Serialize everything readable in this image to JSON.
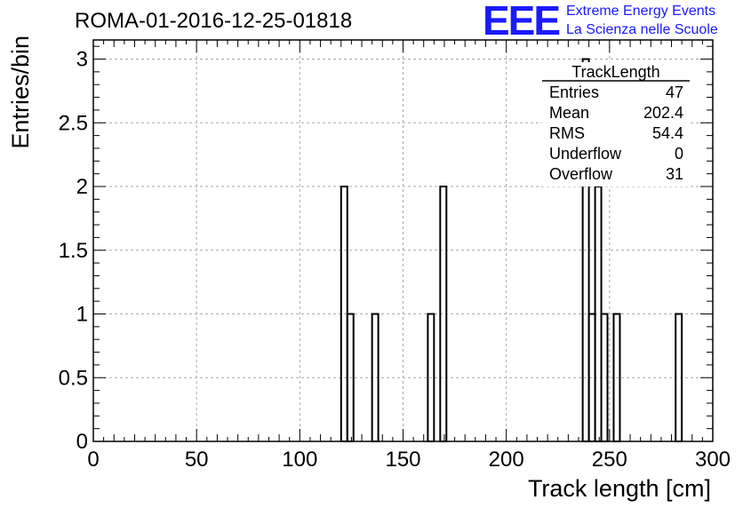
{
  "title": "ROMA-01-2016-12-25-01818",
  "logo": {
    "mark": "EEE",
    "line1": "Extreme Energy Events",
    "line2": "La Scienza nelle Scuole"
  },
  "stats": {
    "name": "TrackLength",
    "rows": [
      {
        "label": "Entries",
        "value": "47"
      },
      {
        "label": "Mean",
        "value": "202.4"
      },
      {
        "label": "RMS",
        "value": "54.4"
      },
      {
        "label": "Underflow",
        "value": "0"
      },
      {
        "label": "Overflow",
        "value": "31"
      }
    ]
  },
  "chart_data": {
    "type": "bar",
    "title": "ROMA-01-2016-12-25-01818",
    "xlabel": "Track length [cm]",
    "ylabel": "Entries/bin",
    "xlim": [
      0,
      300
    ],
    "ylim": [
      0,
      3.15
    ],
    "bin_width": 3,
    "grid": true,
    "x_ticks": [
      "0",
      "50",
      "100",
      "150",
      "200",
      "250",
      "300"
    ],
    "y_ticks": [
      "0",
      "0.5",
      "1",
      "1.5",
      "2",
      "2.5",
      "3"
    ],
    "bins": [
      {
        "x": 120,
        "value": 2
      },
      {
        "x": 123,
        "value": 1
      },
      {
        "x": 135,
        "value": 1
      },
      {
        "x": 162,
        "value": 1
      },
      {
        "x": 168,
        "value": 2
      },
      {
        "x": 237,
        "value": 3
      },
      {
        "x": 240,
        "value": 1
      },
      {
        "x": 243,
        "value": 2
      },
      {
        "x": 246,
        "value": 1
      },
      {
        "x": 252,
        "value": 1
      },
      {
        "x": 282,
        "value": 1
      }
    ]
  }
}
